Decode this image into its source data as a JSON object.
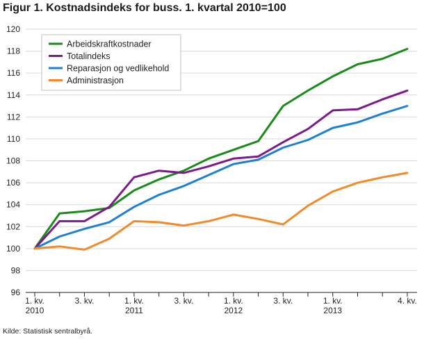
{
  "title": "Figur 1. Kostnadsindeks for buss. 1. kvartal 2010=100",
  "source": "Kilde: Statistisk sentralbyrå.",
  "chart_data": {
    "type": "line",
    "ylim": [
      96,
      120
    ],
    "yticks": [
      96,
      98,
      100,
      102,
      104,
      106,
      108,
      110,
      112,
      114,
      116,
      118,
      120
    ],
    "x_count": 16,
    "xtick_labels": [
      {
        "index": 0,
        "line1": "1. kv.",
        "line2": "2010"
      },
      {
        "index": 2,
        "line1": "3. kv.",
        "line2": ""
      },
      {
        "index": 4,
        "line1": "1. kv.",
        "line2": "2011"
      },
      {
        "index": 6,
        "line1": "3. kv.",
        "line2": ""
      },
      {
        "index": 8,
        "line1": "1. kv.",
        "line2": "2012"
      },
      {
        "index": 10,
        "line1": "3. kv.",
        "line2": ""
      },
      {
        "index": 12,
        "line1": "1. kv.",
        "line2": "2013"
      },
      {
        "index": 15,
        "line1": "4. kv.",
        "line2": ""
      }
    ],
    "grid": true,
    "legend_position": "top-left",
    "series": [
      {
        "name": "Arbeidskraftkostnader",
        "color": "#1a8a1a",
        "values": [
          100,
          103.2,
          103.4,
          103.7,
          105.3,
          106.3,
          107.1,
          108.2,
          109.0,
          109.8,
          113.0,
          114.4,
          115.7,
          116.8,
          117.3,
          118.2
        ]
      },
      {
        "name": "Totalindeks",
        "color": "#7b1a8a",
        "values": [
          100,
          102.5,
          102.5,
          103.8,
          106.5,
          107.1,
          106.9,
          107.5,
          108.2,
          108.4,
          109.7,
          110.9,
          112.6,
          112.7,
          113.6,
          114.4
        ]
      },
      {
        "name": "Reparasjon og vedlikehold",
        "color": "#1f7fd0",
        "values": [
          100,
          101.1,
          101.8,
          102.4,
          103.8,
          104.9,
          105.7,
          106.7,
          107.7,
          108.1,
          109.2,
          109.9,
          111.0,
          111.5,
          112.3,
          113.0
        ]
      },
      {
        "name": "Administrasjon",
        "color": "#f08a2a",
        "values": [
          100,
          100.2,
          99.9,
          100.9,
          102.5,
          102.4,
          102.1,
          102.5,
          103.1,
          102.7,
          102.2,
          103.9,
          105.2,
          106.0,
          106.5,
          106.9
        ]
      }
    ]
  }
}
